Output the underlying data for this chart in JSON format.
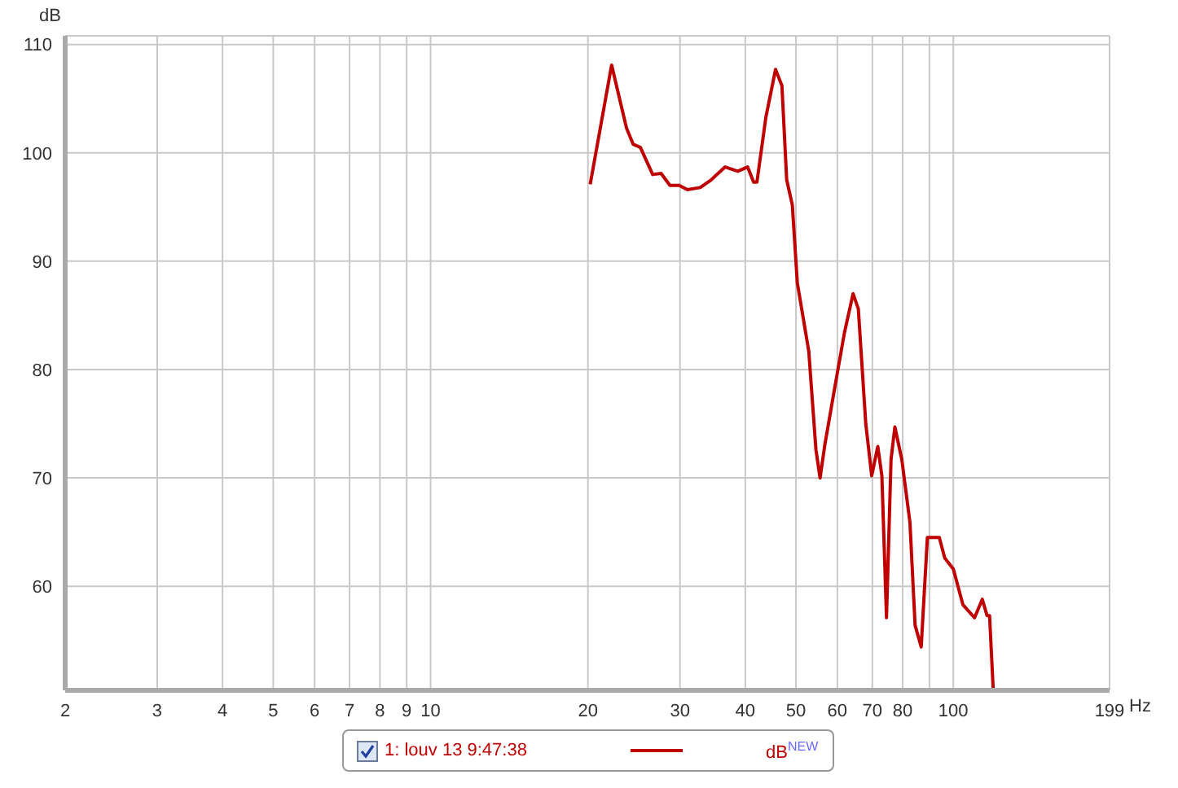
{
  "chart_data": {
    "type": "line",
    "xlabel": "Hz",
    "ylabel": "dB",
    "log": "x",
    "grid": true,
    "legend": "bottom",
    "marker": "none",
    "line_style": "solid",
    "xlim": [
      2,
      199
    ],
    "ylim": [
      50.4,
      110.8
    ],
    "xticks": [
      2,
      3,
      4,
      5,
      6,
      7,
      8,
      9,
      10,
      20,
      30,
      40,
      50,
      60,
      70,
      80,
      {
        "value": 90,
        "label": null
      },
      100,
      199
    ],
    "yticks": [
      60,
      70,
      80,
      90,
      100,
      110
    ],
    "annotations": [
      "dB$^{NEW}$"
    ],
    "series": [
      {
        "name": "1: louv 13 9:47:38",
        "color": "#c00000",
        "x": [
          20.2,
          22.2,
          23.7,
          24.4,
          25.2,
          26.6,
          27.6,
          28.7,
          29.9,
          31.0,
          32.8,
          34.4,
          36.6,
          38.7,
          40.4,
          41.5,
          42.1,
          43.8,
          45.7,
          47.0,
          48.0,
          49.2,
          50.3,
          52.9,
          54.6,
          55.6,
          56.8,
          59.1,
          61.9,
          64.3,
          65.8,
          68.0,
          69.8,
          71.7,
          73.0,
          74.5,
          76.0,
          77.3,
          79.7,
          82.6,
          84.5,
          86.8,
          89.2,
          94.0,
          96.3,
          100.0,
          104.3,
          109.8,
          113.6,
          116.0,
          117.3,
          119.2
        ],
        "values": [
          97.1,
          108.1,
          102.3,
          100.8,
          100.5,
          98.0,
          98.1,
          97.0,
          97.0,
          96.6,
          96.8,
          97.5,
          98.7,
          98.3,
          98.7,
          97.3,
          97.3,
          103.3,
          107.7,
          106.2,
          97.5,
          95.2,
          88.0,
          81.7,
          72.6,
          70.0,
          73.1,
          77.9,
          83.4,
          87.0,
          85.6,
          75.0,
          70.2,
          72.9,
          70.2,
          57.1,
          71.7,
          74.7,
          71.7,
          65.9,
          56.4,
          54.4,
          64.5,
          64.5,
          62.6,
          61.6,
          58.3,
          57.1,
          58.8,
          57.3,
          57.3,
          50.5
        ]
      }
    ]
  }
}
